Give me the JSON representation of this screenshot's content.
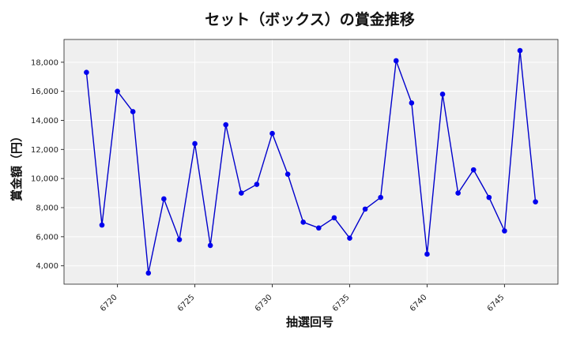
{
  "chart_data": {
    "type": "line",
    "title": "セット（ボックス）の賞金推移",
    "xlabel": "抽選回号",
    "ylabel": "賞金額（円）",
    "x": [
      6718,
      6719,
      6720,
      6721,
      6722,
      6723,
      6724,
      6725,
      6726,
      6727,
      6728,
      6729,
      6730,
      6731,
      6732,
      6733,
      6734,
      6735,
      6736,
      6737,
      6738,
      6739,
      6740,
      6741,
      6742,
      6743,
      6744,
      6745,
      6746,
      6747
    ],
    "series": [
      {
        "values": [
          17300,
          6800,
          16000,
          14600,
          3500,
          8600,
          5800,
          12400,
          5400,
          13700,
          9000,
          9600,
          13100,
          10300,
          7000,
          6600,
          7300,
          5900,
          7900,
          8700,
          18100,
          15200,
          4800,
          15800,
          9000,
          10600,
          8700,
          6400,
          18800,
          8400
        ]
      }
    ],
    "xticks": [
      6720,
      6725,
      6730,
      6735,
      6740,
      6745
    ],
    "xtick_labels": [
      "6720",
      "6725",
      "6730",
      "6735",
      "6740",
      "6745"
    ],
    "yticks": [
      4000,
      6000,
      8000,
      10000,
      12000,
      14000,
      16000,
      18000
    ],
    "ytick_labels": [
      "4,000",
      "6,000",
      "8,000",
      "10,000",
      "12,000",
      "14,000",
      "16,000",
      "18,000"
    ],
    "xlim": [
      6716.55,
      6748.45
    ],
    "ylim": [
      2735,
      19565
    ],
    "grid": true,
    "line_color": "#0000cc",
    "marker_color": "#0000ee",
    "plot_background": "#efefef"
  }
}
